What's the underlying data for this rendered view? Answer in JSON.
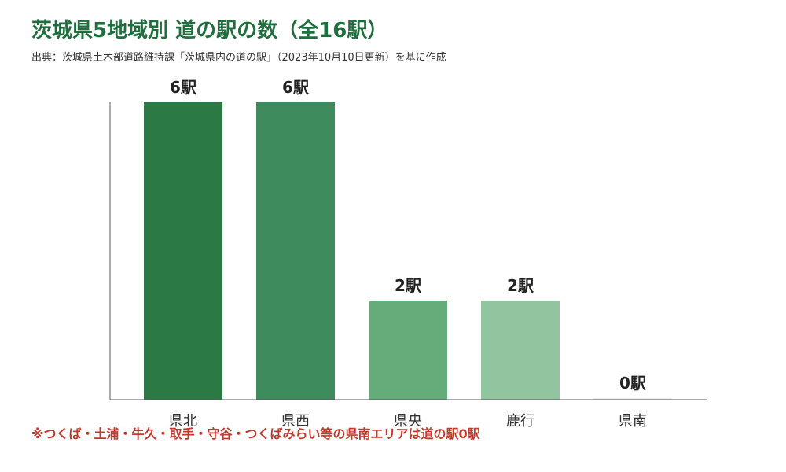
{
  "title": "茨城県5地域別 道の駅の数（全16駅）",
  "subtitle": "出典：茨城県土木部道路維持課「茨城県内の道の駅」（2023年10月10日更新）を基に作成",
  "note": "※つくば・土浦・牛久・取手・守谷・つくばみらい等の県南エリアは道の駅0駅",
  "value_suffix": "駅",
  "colors": {
    "title": "#1f6e3d",
    "note": "#c0392b",
    "axis": "#555555",
    "bars": [
      "#2b7a44",
      "#3e8c5e",
      "#66ac7b",
      "#90c5a0",
      "#e8eee9"
    ]
  },
  "chart_data": {
    "type": "bar",
    "title": "茨城県5地域別 道の駅の数（全16駅）",
    "categories": [
      "県北",
      "県西",
      "県央",
      "鹿行",
      "県南"
    ],
    "values": [
      6,
      6,
      2,
      2,
      0
    ],
    "data_labels": [
      "6駅",
      "6駅",
      "2駅",
      "2駅",
      "0駅"
    ],
    "xlabel": "",
    "ylabel": "",
    "ylim": [
      0,
      6
    ],
    "grid": false,
    "legend": "none"
  }
}
